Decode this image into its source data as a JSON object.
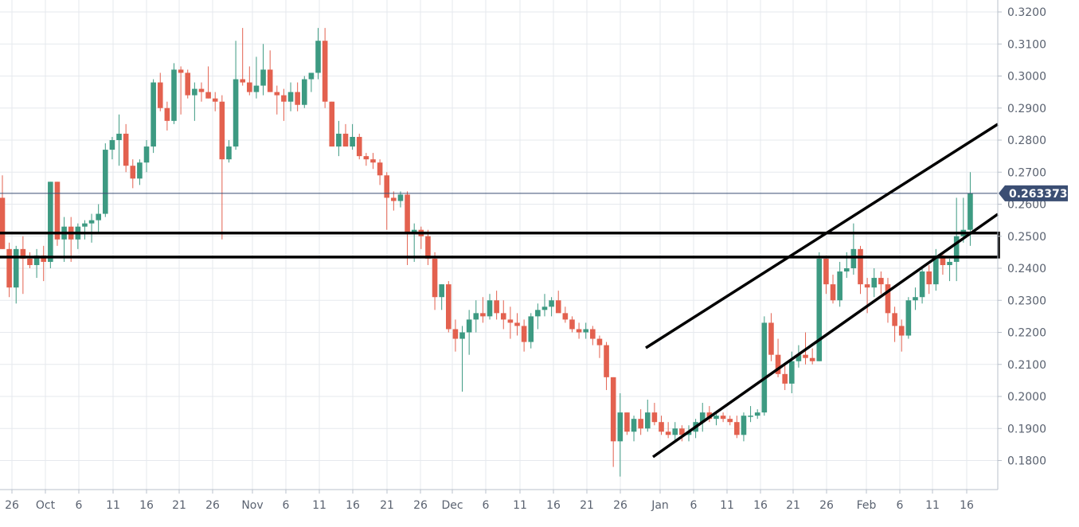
{
  "chart_data": {
    "type": "candlestick",
    "title": "",
    "xlabel": "",
    "ylabel": "",
    "ylim": [
      0.175,
      0.3225
    ],
    "y_ticks": [
      "0.3200",
      "0.3100",
      "0.3000",
      "0.2900",
      "0.2800",
      "0.2700",
      "0.2600",
      "0.2500",
      "0.2400",
      "0.2300",
      "0.2200",
      "0.2100",
      "0.2000",
      "0.1900",
      "0.1800"
    ],
    "x_ticks": [
      "26",
      "Oct",
      "6",
      "11",
      "16",
      "21",
      "26",
      "Nov",
      "6",
      "11",
      "16",
      "21",
      "26",
      "Dec",
      "6",
      "11",
      "16",
      "21",
      "26",
      "Jan",
      "6",
      "11",
      "16",
      "21",
      "26",
      "Feb",
      "6",
      "11",
      "16"
    ],
    "current_price": "0.263373",
    "colors": {
      "up": "#3d9a82",
      "down": "#e3614f",
      "price_line": "#3b4e73",
      "trendline": "#000000",
      "grid": "#e6e9ee"
    },
    "candles": [
      [
        0.262,
        0.269,
        0.246,
        0.246
      ],
      [
        0.246,
        0.248,
        0.231,
        0.234
      ],
      [
        0.234,
        0.247,
        0.229,
        0.246
      ],
      [
        0.246,
        0.25,
        0.232,
        0.243
      ],
      [
        0.243,
        0.245,
        0.24,
        0.241
      ],
      [
        0.241,
        0.246,
        0.237,
        0.244
      ],
      [
        0.244,
        0.247,
        0.236,
        0.242
      ],
      [
        0.242,
        0.267,
        0.24,
        0.267
      ],
      [
        0.267,
        0.267,
        0.247,
        0.249
      ],
      [
        0.249,
        0.256,
        0.242,
        0.253
      ],
      [
        0.253,
        0.256,
        0.242,
        0.249
      ],
      [
        0.249,
        0.254,
        0.246,
        0.253
      ],
      [
        0.253,
        0.255,
        0.249,
        0.254
      ],
      [
        0.254,
        0.257,
        0.248,
        0.255
      ],
      [
        0.255,
        0.26,
        0.251,
        0.257
      ],
      [
        0.257,
        0.279,
        0.256,
        0.277
      ],
      [
        0.277,
        0.281,
        0.274,
        0.28
      ],
      [
        0.28,
        0.288,
        0.272,
        0.282
      ],
      [
        0.282,
        0.285,
        0.27,
        0.272
      ],
      [
        0.272,
        0.274,
        0.265,
        0.268
      ],
      [
        0.268,
        0.274,
        0.266,
        0.273
      ],
      [
        0.273,
        0.28,
        0.27,
        0.278
      ],
      [
        0.278,
        0.299,
        0.276,
        0.298
      ],
      [
        0.298,
        0.301,
        0.289,
        0.29
      ],
      [
        0.29,
        0.292,
        0.283,
        0.286
      ],
      [
        0.286,
        0.304,
        0.285,
        0.302
      ],
      [
        0.302,
        0.303,
        0.288,
        0.301
      ],
      [
        0.301,
        0.302,
        0.293,
        0.294
      ],
      [
        0.294,
        0.298,
        0.286,
        0.296
      ],
      [
        0.296,
        0.298,
        0.292,
        0.295
      ],
      [
        0.295,
        0.303,
        0.293,
        0.293
      ],
      [
        0.293,
        0.295,
        0.289,
        0.292
      ],
      [
        0.292,
        0.294,
        0.249,
        0.274
      ],
      [
        0.274,
        0.28,
        0.273,
        0.278
      ],
      [
        0.278,
        0.311,
        0.277,
        0.299
      ],
      [
        0.299,
        0.315,
        0.297,
        0.298
      ],
      [
        0.298,
        0.303,
        0.294,
        0.295
      ],
      [
        0.295,
        0.306,
        0.293,
        0.297
      ],
      [
        0.297,
        0.31,
        0.294,
        0.302
      ],
      [
        0.302,
        0.308,
        0.295,
        0.295
      ],
      [
        0.295,
        0.297,
        0.288,
        0.294
      ],
      [
        0.294,
        0.296,
        0.286,
        0.292
      ],
      [
        0.292,
        0.298,
        0.289,
        0.295
      ],
      [
        0.295,
        0.298,
        0.289,
        0.291
      ],
      [
        0.291,
        0.3,
        0.29,
        0.299
      ],
      [
        0.299,
        0.301,
        0.295,
        0.301
      ],
      [
        0.301,
        0.315,
        0.299,
        0.311
      ],
      [
        0.311,
        0.315,
        0.29,
        0.292
      ],
      [
        0.292,
        0.292,
        0.278,
        0.278
      ],
      [
        0.278,
        0.286,
        0.275,
        0.282
      ],
      [
        0.282,
        0.285,
        0.278,
        0.278
      ],
      [
        0.278,
        0.285,
        0.277,
        0.281
      ],
      [
        0.281,
        0.282,
        0.274,
        0.275
      ],
      [
        0.275,
        0.276,
        0.272,
        0.274
      ],
      [
        0.274,
        0.276,
        0.271,
        0.273
      ],
      [
        0.273,
        0.274,
        0.266,
        0.269
      ],
      [
        0.269,
        0.27,
        0.252,
        0.262
      ],
      [
        0.262,
        0.264,
        0.258,
        0.261
      ],
      [
        0.261,
        0.264,
        0.259,
        0.263
      ],
      [
        0.263,
        0.264,
        0.241,
        0.251
      ],
      [
        0.251,
        0.254,
        0.242,
        0.252
      ],
      [
        0.252,
        0.253,
        0.246,
        0.25
      ],
      [
        0.25,
        0.252,
        0.241,
        0.243
      ],
      [
        0.243,
        0.245,
        0.227,
        0.231
      ],
      [
        0.231,
        0.235,
        0.227,
        0.235
      ],
      [
        0.235,
        0.236,
        0.22,
        0.221
      ],
      [
        0.221,
        0.224,
        0.214,
        0.218
      ],
      [
        0.218,
        0.222,
        0.2015,
        0.22
      ],
      [
        0.22,
        0.227,
        0.213,
        0.224
      ],
      [
        0.224,
        0.23,
        0.22,
        0.226
      ],
      [
        0.226,
        0.231,
        0.223,
        0.225
      ],
      [
        0.225,
        0.232,
        0.224,
        0.23
      ],
      [
        0.23,
        0.233,
        0.224,
        0.226
      ],
      [
        0.226,
        0.23,
        0.221,
        0.224
      ],
      [
        0.224,
        0.228,
        0.218,
        0.223
      ],
      [
        0.223,
        0.226,
        0.219,
        0.222
      ],
      [
        0.222,
        0.224,
        0.214,
        0.217
      ],
      [
        0.217,
        0.226,
        0.215,
        0.225
      ],
      [
        0.225,
        0.229,
        0.221,
        0.227
      ],
      [
        0.227,
        0.232,
        0.225,
        0.228
      ],
      [
        0.228,
        0.231,
        0.225,
        0.23
      ],
      [
        0.23,
        0.233,
        0.227,
        0.226
      ],
      [
        0.226,
        0.228,
        0.223,
        0.224
      ],
      [
        0.224,
        0.225,
        0.22,
        0.221
      ],
      [
        0.221,
        0.223,
        0.218,
        0.22
      ],
      [
        0.22,
        0.223,
        0.218,
        0.221
      ],
      [
        0.221,
        0.222,
        0.216,
        0.218
      ],
      [
        0.218,
        0.219,
        0.212,
        0.216
      ],
      [
        0.216,
        0.217,
        0.202,
        0.206
      ],
      [
        0.206,
        0.206,
        0.178,
        0.186
      ],
      [
        0.186,
        0.201,
        0.175,
        0.195
      ],
      [
        0.195,
        0.195,
        0.188,
        0.189
      ],
      [
        0.189,
        0.194,
        0.186,
        0.193
      ],
      [
        0.193,
        0.196,
        0.188,
        0.19
      ],
      [
        0.19,
        0.199,
        0.189,
        0.195
      ],
      [
        0.195,
        0.198,
        0.191,
        0.192
      ],
      [
        0.192,
        0.194,
        0.188,
        0.189
      ],
      [
        0.189,
        0.192,
        0.187,
        0.188
      ],
      [
        0.188,
        0.192,
        0.186,
        0.19
      ],
      [
        0.19,
        0.191,
        0.186,
        0.188
      ],
      [
        0.188,
        0.191,
        0.186,
        0.189
      ],
      [
        0.189,
        0.193,
        0.187,
        0.192
      ],
      [
        0.192,
        0.198,
        0.189,
        0.195
      ],
      [
        0.195,
        0.197,
        0.192,
        0.193
      ],
      [
        0.193,
        0.195,
        0.191,
        0.194
      ],
      [
        0.194,
        0.195,
        0.192,
        0.193
      ],
      [
        0.193,
        0.194,
        0.191,
        0.192
      ],
      [
        0.192,
        0.194,
        0.187,
        0.188
      ],
      [
        0.188,
        0.195,
        0.186,
        0.194
      ],
      [
        0.194,
        0.197,
        0.192,
        0.194
      ],
      [
        0.194,
        0.196,
        0.193,
        0.195
      ],
      [
        0.195,
        0.225,
        0.194,
        0.223
      ],
      [
        0.223,
        0.226,
        0.211,
        0.213
      ],
      [
        0.213,
        0.218,
        0.206,
        0.207
      ],
      [
        0.207,
        0.21,
        0.202,
        0.204
      ],
      [
        0.204,
        0.214,
        0.201,
        0.211
      ],
      [
        0.211,
        0.216,
        0.209,
        0.213
      ],
      [
        0.213,
        0.22,
        0.21,
        0.212
      ],
      [
        0.212,
        0.215,
        0.21,
        0.211
      ],
      [
        0.211,
        0.245,
        0.211,
        0.243
      ],
      [
        0.243,
        0.244,
        0.232,
        0.235
      ],
      [
        0.235,
        0.238,
        0.229,
        0.23
      ],
      [
        0.23,
        0.242,
        0.228,
        0.239
      ],
      [
        0.239,
        0.245,
        0.237,
        0.24
      ],
      [
        0.24,
        0.254,
        0.238,
        0.246
      ],
      [
        0.246,
        0.247,
        0.232,
        0.235
      ],
      [
        0.235,
        0.237,
        0.226,
        0.234
      ],
      [
        0.234,
        0.24,
        0.231,
        0.237
      ],
      [
        0.237,
        0.239,
        0.232,
        0.235
      ],
      [
        0.235,
        0.237,
        0.223,
        0.226
      ],
      [
        0.226,
        0.228,
        0.217,
        0.222
      ],
      [
        0.222,
        0.224,
        0.214,
        0.219
      ],
      [
        0.219,
        0.231,
        0.218,
        0.23
      ],
      [
        0.23,
        0.234,
        0.227,
        0.231
      ],
      [
        0.231,
        0.24,
        0.229,
        0.239
      ],
      [
        0.239,
        0.241,
        0.232,
        0.235
      ],
      [
        0.235,
        0.246,
        0.233,
        0.244
      ],
      [
        0.244,
        0.245,
        0.238,
        0.241
      ],
      [
        0.241,
        0.243,
        0.236,
        0.242
      ],
      [
        0.242,
        0.262,
        0.236,
        0.25
      ],
      [
        0.25,
        0.262,
        0.248,
        0.252
      ],
      [
        0.252,
        0.27,
        0.247,
        0.2634
      ]
    ],
    "trendlines": [
      {
        "from": [
          0.2,
          0.215
        ],
        "to": [
          54.9,
          0.285
        ]
      },
      {
        "from": [
          0.5,
          0.1815
        ],
        "to": [
          54.9,
          0.2575
        ]
      }
    ],
    "zone": {
      "top": 0.251,
      "bottom": 0.2435
    }
  }
}
